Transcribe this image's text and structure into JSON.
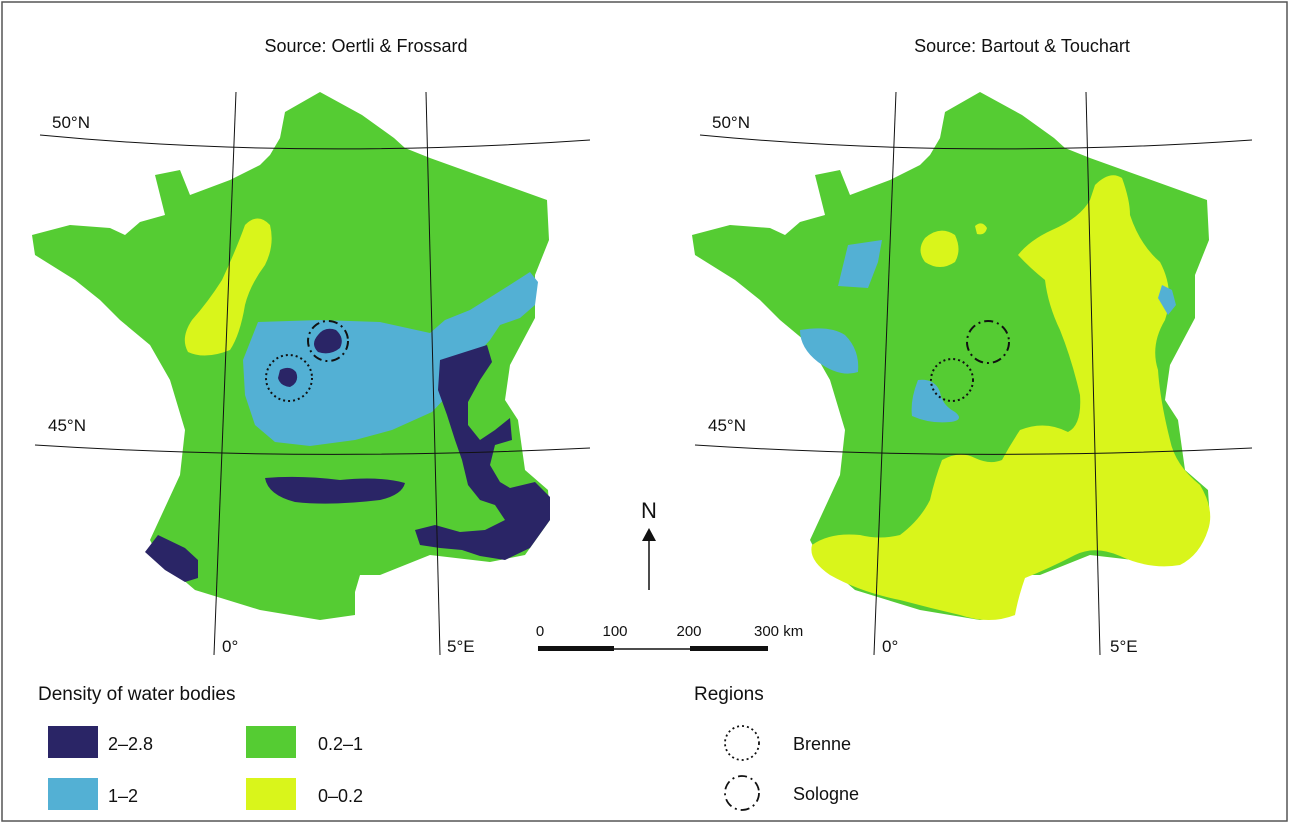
{
  "colors": {
    "density_2_2_8": "#2a2566",
    "density_1_2": "#53b0d4",
    "density_0_2_1": "#55cc33",
    "density_0_0_2": "#d9f51b",
    "graticule": "#111111",
    "frame": "#444444"
  },
  "maps": [
    {
      "title": "Source: Oertli & Frossard",
      "lat_labels": [
        "50°N",
        "45°N"
      ],
      "lon_labels": [
        "0°",
        "5°E"
      ]
    },
    {
      "title": "Source: Bartout & Touchart",
      "lat_labels": [
        "50°N",
        "45°N"
      ],
      "lon_labels": [
        "0°",
        "5°E"
      ]
    }
  ],
  "north_arrow": {
    "label": "N"
  },
  "scale_bar": {
    "ticks": [
      "0",
      "100",
      "200",
      "300 km"
    ]
  },
  "legend": {
    "density": {
      "title": "Density of water bodies",
      "items": [
        {
          "label": "2–2.8",
          "color": "#2a2566"
        },
        {
          "label": "0.2–1",
          "color": "#55cc33"
        },
        {
          "label": "1–2",
          "color": "#53b0d4"
        },
        {
          "label": "0–0.2",
          "color": "#d9f51b"
        }
      ]
    },
    "regions": {
      "title": "Regions",
      "items": [
        {
          "label": "Brenne",
          "style": "dotted-circle"
        },
        {
          "label": "Sologne",
          "style": "dash-dot-circle"
        }
      ]
    }
  }
}
